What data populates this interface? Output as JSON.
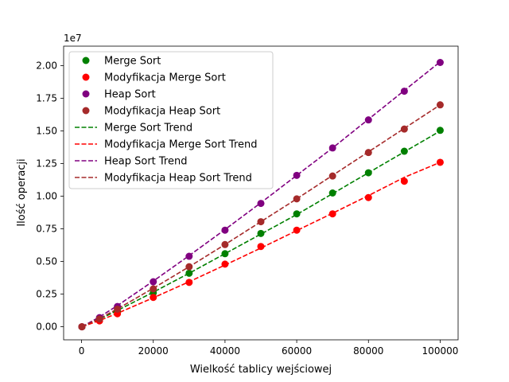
{
  "chart_data": {
    "type": "scatter",
    "xlabel": "Wielkość tablicy wejściowej",
    "ylabel": "Ilość operacji",
    "y_offset_label": "1e7",
    "xlim": [
      -5000,
      105000
    ],
    "ylim": [
      -0.1,
      2.15
    ],
    "y_scale_factor": 10000000,
    "x_ticks": [
      0,
      20000,
      40000,
      60000,
      80000,
      100000
    ],
    "x_tick_labels": [
      "0",
      "20000",
      "40000",
      "60000",
      "80000",
      "100000"
    ],
    "y_ticks": [
      0.0,
      0.25,
      0.5,
      0.75,
      1.0,
      1.25,
      1.5,
      1.75,
      2.0
    ],
    "y_tick_labels": [
      "0.00",
      "0.25",
      "0.50",
      "0.75",
      "1.00",
      "1.25",
      "1.50",
      "1.75",
      "2.00"
    ],
    "grid": false,
    "legend_position": "top-left",
    "x": [
      100,
      5000,
      10000,
      20000,
      30000,
      40000,
      50000,
      60000,
      70000,
      80000,
      90000,
      100000
    ],
    "series": [
      {
        "name": "Merge Sort",
        "color": "#008000",
        "values": [
          0.0,
          0.055,
          0.12,
          0.26,
          0.41,
          0.56,
          0.715,
          0.865,
          1.025,
          1.18,
          1.345,
          1.505
        ]
      },
      {
        "name": "Modyfikacja Merge Sort",
        "color": "#ff0000",
        "values": [
          0.0,
          0.045,
          0.1,
          0.225,
          0.34,
          0.48,
          0.615,
          0.74,
          0.865,
          0.99,
          1.115,
          1.26
        ]
      },
      {
        "name": "Heap Sort",
        "color": "#800080",
        "values": [
          0.0,
          0.07,
          0.155,
          0.345,
          0.54,
          0.74,
          0.945,
          1.16,
          1.37,
          1.585,
          1.805,
          2.025
        ]
      },
      {
        "name": "Modyfikacja Heap Sort",
        "color": "#a52a2a",
        "values": [
          0.0,
          0.06,
          0.135,
          0.29,
          0.46,
          0.63,
          0.805,
          0.98,
          1.155,
          1.335,
          1.515,
          1.7
        ]
      }
    ],
    "trends": [
      {
        "name": "Merge Sort Trend",
        "color": "#008000",
        "values": [
          0.0,
          0.058,
          0.125,
          0.265,
          0.41,
          0.56,
          0.71,
          0.86,
          1.02,
          1.18,
          1.34,
          1.5
        ]
      },
      {
        "name": "Modyfikacja Merge Sort Trend",
        "color": "#ff0000",
        "values": [
          0.0,
          0.048,
          0.103,
          0.222,
          0.345,
          0.473,
          0.603,
          0.737,
          0.87,
          1.005,
          1.145,
          1.26
        ]
      },
      {
        "name": "Heap Sort Trend",
        "color": "#800080",
        "values": [
          0.0,
          0.075,
          0.162,
          0.35,
          0.545,
          0.745,
          0.95,
          1.16,
          1.37,
          1.59,
          1.81,
          2.03
        ]
      },
      {
        "name": "Modyfikacja Heap Sort Trend",
        "color": "#a52a2a",
        "values": [
          0.0,
          0.063,
          0.137,
          0.295,
          0.46,
          0.63,
          0.805,
          0.98,
          1.16,
          1.34,
          1.52,
          1.7
        ]
      }
    ]
  }
}
